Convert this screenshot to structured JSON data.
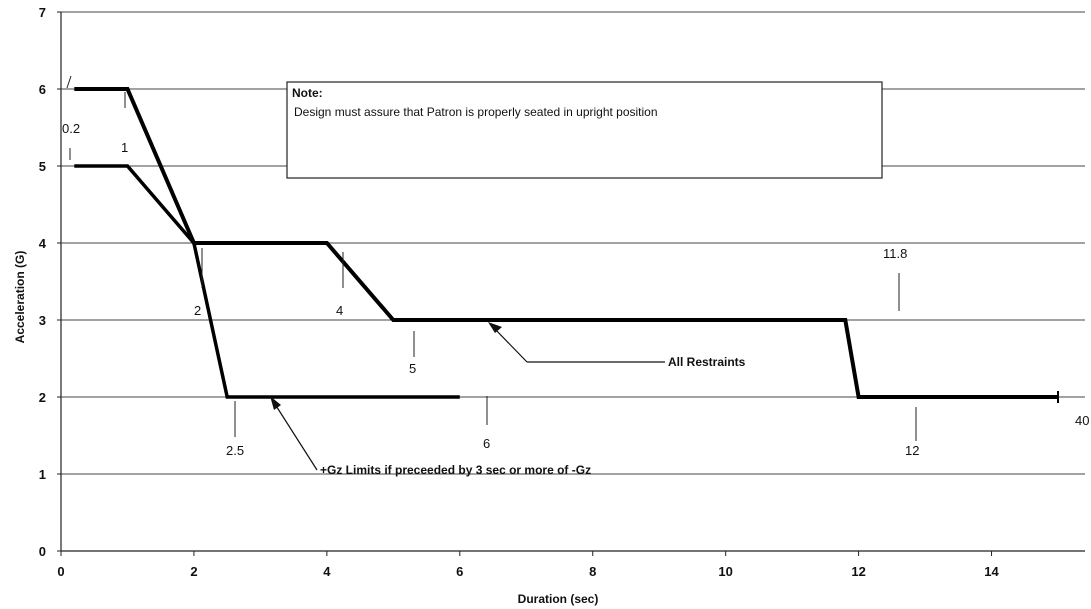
{
  "chart_data": {
    "type": "line",
    "xlabel": "Duration (sec)",
    "ylabel": "Acceleration (G)",
    "xlim": [
      0,
      15
    ],
    "ylim": [
      0,
      7
    ],
    "x_ticks": [
      0,
      2,
      4,
      6,
      8,
      10,
      12,
      14
    ],
    "y_ticks": [
      0,
      1,
      2,
      3,
      4,
      5,
      6,
      7
    ],
    "grid": "horizontal",
    "series": [
      {
        "name": "All Restraints",
        "points": [
          [
            0.2,
            6
          ],
          [
            1,
            6
          ],
          [
            2,
            4
          ],
          [
            4,
            4
          ],
          [
            5,
            3
          ],
          [
            11.8,
            3
          ],
          [
            12,
            2
          ],
          [
            15,
            2
          ]
        ]
      },
      {
        "name": "+Gz Limits if preceeded by 3 sec or more of -Gz",
        "points": [
          [
            0.2,
            5
          ],
          [
            1,
            5
          ],
          [
            2,
            4
          ],
          [
            2.5,
            2
          ],
          [
            6,
            2
          ]
        ]
      }
    ],
    "annotations": [
      {
        "text": "0.2",
        "x": 0.2,
        "y": 6
      },
      {
        "text": "1",
        "x": 1,
        "y": 6
      },
      {
        "text": "2",
        "x": 2,
        "y": 4
      },
      {
        "text": "2.5",
        "x": 2.5,
        "y": 2
      },
      {
        "text": "4",
        "x": 4,
        "y": 4
      },
      {
        "text": "5",
        "x": 5,
        "y": 3
      },
      {
        "text": "6",
        "x": 6,
        "y": 2
      },
      {
        "text": "11.8",
        "x": 11.8,
        "y": 3
      },
      {
        "text": "12",
        "x": 12,
        "y": 2
      },
      {
        "text": "40",
        "x": 15,
        "y": 2
      }
    ],
    "callouts": {
      "all_restraints": "All Restraints",
      "gz_limits": "+Gz Limits if preceeded by 3 sec or more of -Gz"
    },
    "note": {
      "title": "Note:",
      "text": "Design must assure that Patron is properly seated in upright position"
    }
  }
}
